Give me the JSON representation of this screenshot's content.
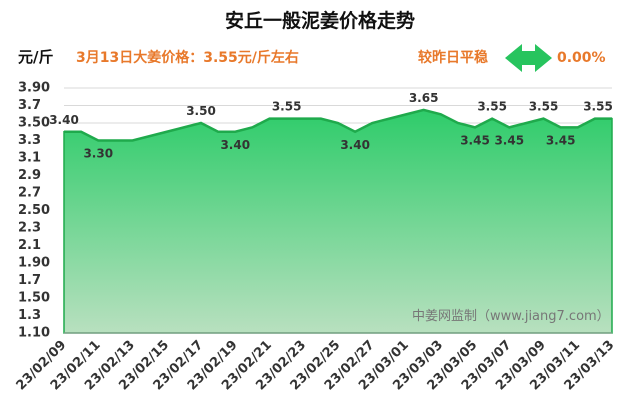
{
  "chart_data": {
    "type": "area",
    "title": "安丘一般泥姜价格走势",
    "y_label": "元/斤",
    "subtitle": "3月13日大姜价格：3.55元/斤左右",
    "change_label": "较昨日平稳",
    "change_value": "0.00%",
    "watermark": "中姜网监制（www.jiang7.com）",
    "x": [
      "23/02/09",
      null,
      "23/02/11",
      null,
      "23/02/13",
      null,
      "23/02/15",
      null,
      "23/02/17",
      null,
      "23/02/19",
      null,
      "23/02/21",
      null,
      "23/02/23",
      null,
      "23/02/25",
      null,
      "23/02/27",
      null,
      "23/03/01",
      null,
      "23/03/03",
      null,
      "23/03/05",
      null,
      "23/03/07",
      null,
      "23/03/09",
      null,
      "23/03/11",
      null,
      "23/03/13"
    ],
    "values": [
      3.4,
      3.4,
      3.3,
      3.3,
      3.3,
      3.35,
      3.4,
      3.45,
      3.5,
      3.4,
      3.4,
      3.45,
      3.55,
      3.55,
      3.55,
      3.55,
      3.5,
      3.4,
      3.5,
      3.55,
      3.6,
      3.65,
      3.6,
      3.5,
      3.45,
      3.55,
      3.45,
      3.5,
      3.55,
      3.45,
      3.45,
      3.55,
      3.55
    ],
    "value_labels": [
      "3.40",
      null,
      "3.30",
      null,
      null,
      null,
      null,
      null,
      "3.50",
      null,
      "3.40",
      null,
      null,
      "3.55",
      null,
      null,
      null,
      "3.40",
      null,
      null,
      null,
      "3.65",
      null,
      null,
      "3.45",
      "3.55",
      "3.45",
      null,
      "3.55",
      "3.45",
      null,
      null,
      "3.55"
    ],
    "color": "#1faa4c",
    "ylim": [
      1.1,
      3.9
    ],
    "yticks": [
      {
        "value": 1.1,
        "label": "1.10"
      },
      1.3,
      {
        "value": 1.5,
        "label": "1.50"
      },
      1.7,
      {
        "value": 1.9,
        "label": "1.90"
      },
      2.1,
      2.3,
      {
        "value": 2.5,
        "label": "2.50"
      },
      2.7,
      2.9,
      3.1,
      3.3,
      {
        "value": 3.5,
        "label": "3.50"
      },
      3.7,
      {
        "value": 3.9,
        "label": "3.90"
      }
    ],
    "grid": true
  }
}
